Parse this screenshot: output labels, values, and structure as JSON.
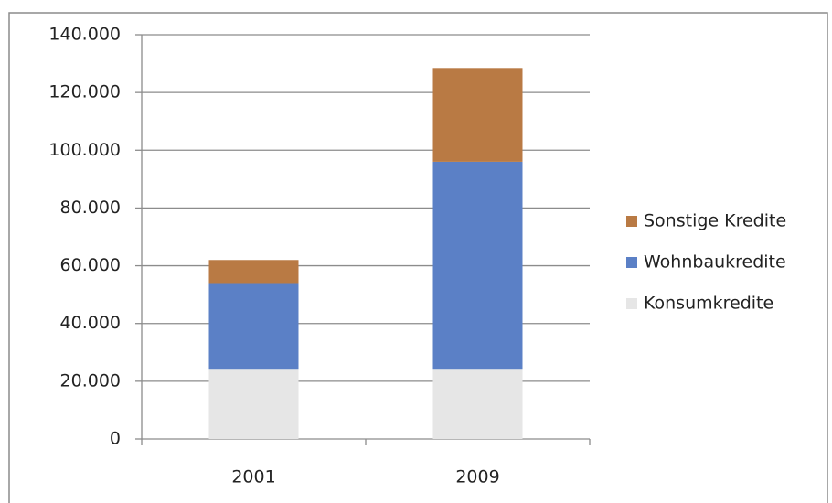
{
  "chart_data": {
    "type": "stacked_bar",
    "categories": [
      "2001",
      "2009"
    ],
    "series": [
      {
        "name": "Konsumkredite",
        "color": "#e6e6e6",
        "values": [
          24000,
          24000
        ]
      },
      {
        "name": "Wohnbaukredite",
        "color": "#5b80c6",
        "values": [
          30000,
          72000
        ]
      },
      {
        "name": "Sonstige Kredite",
        "color": "#b97a44",
        "values": [
          8000,
          32500
        ]
      }
    ],
    "ylim": [
      0,
      140000
    ],
    "yticks": [
      0,
      {
        "value": 20000,
        "label": "20.000"
      },
      {
        "value": 40000,
        "label": "40.000"
      },
      {
        "value": 60000,
        "label": "60.000"
      },
      {
        "value": 80000,
        "label": "80.000"
      },
      {
        "value": 100000,
        "label": "100.000"
      },
      {
        "value": 120000,
        "label": "120.000"
      },
      {
        "value": 140000,
        "label": "140.000"
      }
    ],
    "grid": true,
    "legend": "right"
  }
}
